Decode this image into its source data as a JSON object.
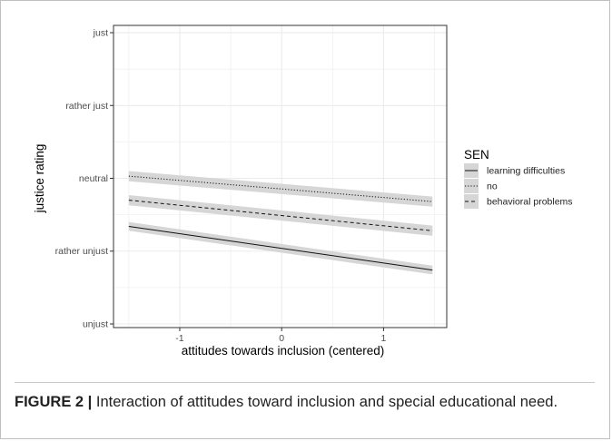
{
  "chart_data": {
    "type": "line",
    "xlabel": "attitudes towards inclusion (centered)",
    "ylabel": "justice rating",
    "x_ticks": [
      -1,
      0,
      1
    ],
    "x_tick_labels": [
      "-1",
      "0",
      "1"
    ],
    "xlim": [
      -1.65,
      1.62
    ],
    "y_ticks": [
      1,
      2,
      3,
      4,
      5
    ],
    "y_tick_labels": [
      "unjust",
      "rather unjust",
      "neutral",
      "rather just",
      "just"
    ],
    "ylim": [
      0.95,
      5.1
    ],
    "grid": true,
    "legend": {
      "title": "SEN",
      "position": "right"
    },
    "series": [
      {
        "name": "learning difficulties",
        "linestyle": "solid",
        "x": [
          -1.5,
          1.48
        ],
        "y": [
          2.34,
          1.74
        ],
        "ci_width": 0.06
      },
      {
        "name": "no",
        "linestyle": "dotted",
        "x": [
          -1.5,
          1.48
        ],
        "y": [
          3.03,
          2.68
        ],
        "ci_width": 0.07
      },
      {
        "name": "behavioral problems",
        "linestyle": "dashed",
        "x": [
          -1.5,
          1.48
        ],
        "y": [
          2.7,
          2.28
        ],
        "ci_width": 0.07
      }
    ]
  },
  "caption": {
    "label": "FIGURE 2 |",
    "text": " Interaction of attitudes toward inclusion and special educational need."
  },
  "colors": {
    "band": "#d6d6d6",
    "line": "#111111",
    "grid": "#ebebeb",
    "panel_border": "#333333",
    "tick_text": "#4d4d4d"
  }
}
